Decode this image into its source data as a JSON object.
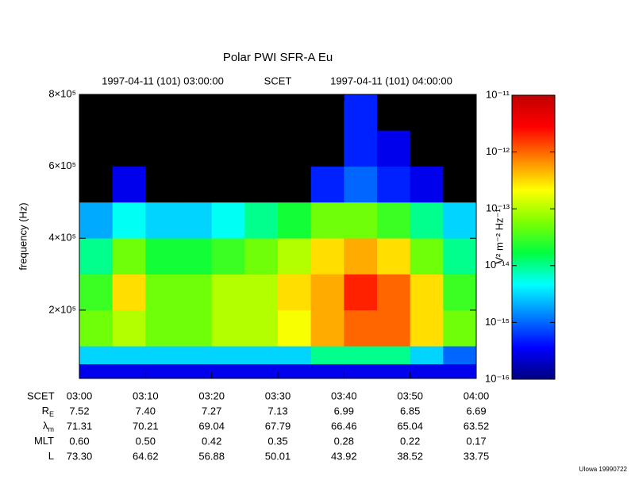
{
  "chart_data": {
    "type": "heatmap",
    "title": "Polar PWI SFR-A Eu",
    "start_time": "1997-04-11 (101) 03:00:00",
    "time_label": "SCET",
    "end_time": "1997-04-11 (101) 04:00:00",
    "y_label": "frequency (Hz)",
    "ylim": [
      10000,
      800000
    ],
    "yticks": [
      {
        "value": 200000,
        "label": "2×10⁵"
      },
      {
        "value": 400000,
        "label": "4×10⁵"
      },
      {
        "value": 600000,
        "label": "6×10⁵"
      },
      {
        "value": 800000,
        "label": "8×10⁵"
      }
    ],
    "xlim": [
      "03:00",
      "04:00"
    ],
    "xticks": [
      "03:00",
      "03:10",
      "03:20",
      "03:30",
      "03:40",
      "03:50",
      "04:00"
    ],
    "x": [
      "03:00",
      "03:05",
      "03:10",
      "03:15",
      "03:20",
      "03:25",
      "03:30",
      "03:35",
      "03:40",
      "03:45",
      "03:50",
      "03:55"
    ],
    "y_edges": [
      10000,
      50000,
      100000,
      200000,
      300000,
      400000,
      500000,
      600000,
      700000,
      800000
    ],
    "z": [
      [
        3e-16,
        3e-16,
        3e-16,
        3e-16,
        3e-16,
        3e-16,
        3e-16,
        3e-16,
        3e-16,
        3e-16,
        3e-16,
        3e-16
      ],
      [
        3e-15,
        3e-15,
        3e-15,
        3e-15,
        3e-15,
        3e-15,
        3e-15,
        1e-14,
        1e-14,
        1e-14,
        3e-15,
        1e-15
      ],
      [
        5e-14,
        1e-13,
        5e-14,
        5e-14,
        1e-13,
        1e-13,
        2e-13,
        5e-13,
        1e-12,
        1e-12,
        3e-13,
        5e-14
      ],
      [
        3e-14,
        3e-13,
        5e-14,
        5e-14,
        1e-13,
        1e-13,
        3e-13,
        5e-13,
        2e-12,
        1e-12,
        3e-13,
        3e-14
      ],
      [
        1e-14,
        5e-14,
        2e-14,
        2e-14,
        3e-14,
        5e-14,
        1e-13,
        3e-13,
        5e-13,
        3e-13,
        5e-14,
        1e-14
      ],
      [
        2e-15,
        5e-15,
        3e-15,
        3e-15,
        5e-15,
        1e-14,
        2e-14,
        5e-14,
        5e-14,
        3e-14,
        1e-14,
        3e-15
      ],
      [
        null,
        3e-16,
        null,
        null,
        null,
        null,
        null,
        5e-16,
        1e-15,
        5e-16,
        3e-16,
        null
      ],
      [
        null,
        null,
        null,
        null,
        null,
        null,
        null,
        null,
        5e-16,
        3e-16,
        null,
        null
      ],
      [
        null,
        null,
        null,
        null,
        null,
        null,
        null,
        null,
        5e-16,
        null,
        null,
        null
      ]
    ],
    "z_log": true,
    "zlim": [
      1e-16,
      1e-11
    ],
    "zticks": [
      {
        "value": 1e-16,
        "label": "10⁻¹⁶"
      },
      {
        "value": 1e-15,
        "label": "10⁻¹⁵"
      },
      {
        "value": 1e-14,
        "label": "10⁻¹⁴"
      },
      {
        "value": 1e-13,
        "label": "10⁻¹³"
      },
      {
        "value": 1e-12,
        "label": "10⁻¹²"
      },
      {
        "value": 1e-11,
        "label": "10⁻¹¹"
      }
    ],
    "z_label": "V² m⁻² Hz⁻¹",
    "colormap": [
      "#00007f",
      "#0000ff",
      "#0080ff",
      "#00ffff",
      "#00ff40",
      "#80ff00",
      "#ffff00",
      "#ff8000",
      "#ff0000",
      "#c00000"
    ],
    "missing_color": "#000000",
    "ephemeris": [
      {
        "name": "R",
        "sub": "E",
        "values": [
          "7.52",
          "7.40",
          "7.27",
          "7.13",
          "6.99",
          "6.85",
          "6.69"
        ]
      },
      {
        "name": "λ",
        "sub": "m",
        "values": [
          "71.31",
          "70.21",
          "69.04",
          "67.79",
          "66.46",
          "65.04",
          "63.52"
        ]
      },
      {
        "name": "MLT",
        "values": [
          "0.60",
          "0.50",
          "0.42",
          "0.35",
          "0.28",
          "0.22",
          "0.17"
        ]
      },
      {
        "name": "L",
        "values": [
          "73.30",
          "64.62",
          "56.88",
          "50.01",
          "43.92",
          "38.52",
          "33.75"
        ]
      }
    ],
    "credit": "UIowa 19990722"
  }
}
